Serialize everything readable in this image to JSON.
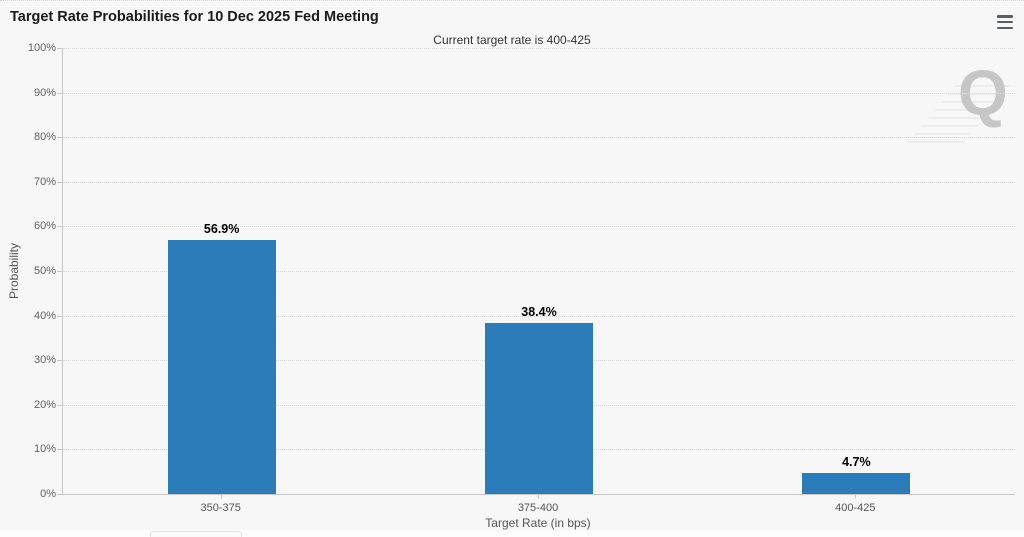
{
  "chart": {
    "background_color": "#f7f7f7",
    "menu_icon": "hamburger-menu-icon"
  },
  "chart_data": {
    "type": "bar",
    "title": "Target Rate Probabilities for 10 Dec 2025 Fed Meeting",
    "subtitle": "Current target rate is 400-425",
    "categories": [
      "350-375",
      "375-400",
      "400-425"
    ],
    "values": [
      56.9,
      38.4,
      4.7
    ],
    "value_labels": [
      "56.9%",
      "38.4%",
      "4.7%"
    ],
    "xlabel": "Target Rate (in bps)",
    "ylabel": "Probability",
    "ylim": [
      0,
      100
    ],
    "ytick_step": 10,
    "ytick_suffix": "%",
    "grid": "dotted-horizontal",
    "legend": "none",
    "bar_color": "#2b7cb9",
    "label_color": "#000000",
    "axis_color": "#c9c9c9",
    "watermark": "Q"
  }
}
